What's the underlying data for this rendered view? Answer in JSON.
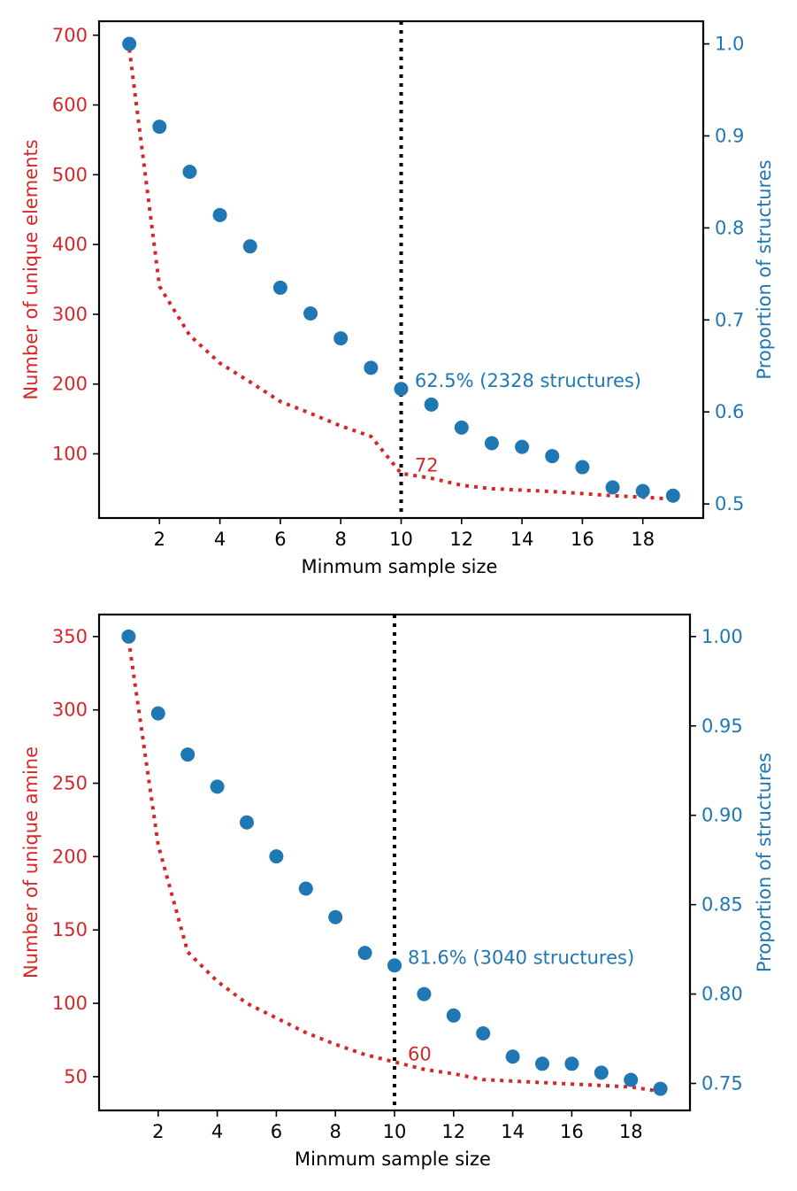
{
  "colors": {
    "left_axis": "#d62728",
    "right_axis": "#1f77b4",
    "line": "#d62728",
    "points": "#1f77b4",
    "vline": "#000000",
    "frame": "#000000"
  },
  "chart_data": [
    {
      "type": "line",
      "secondary_type": "scatter",
      "xlabel": "Minmum sample size",
      "ylabel_left": "Number of unique elements",
      "ylabel_right": "Proportion of structures",
      "xlim": [
        0.0,
        20.0
      ],
      "xticks": [
        2,
        4,
        6,
        8,
        10,
        12,
        14,
        16,
        18
      ],
      "ylim_left": [
        8,
        720
      ],
      "yticks_left": [
        100,
        200,
        300,
        400,
        500,
        600,
        700
      ],
      "ylim_right": [
        0.4847,
        1.0246
      ],
      "yticks_right": [
        0.5,
        0.6,
        0.7,
        0.8,
        0.9,
        1.0
      ],
      "yticks_right_labels": [
        "0.5",
        "0.6",
        "0.7",
        "0.8",
        "0.9",
        "1.0"
      ],
      "grid": false,
      "vline_x": 10,
      "series": [
        {
          "name": "",
          "axis": "left",
          "style": "dotted",
          "x": [
            1,
            2,
            3,
            4,
            5,
            6,
            7,
            8,
            9,
            10,
            11,
            12,
            13,
            14,
            15,
            16,
            17,
            18,
            19
          ],
          "values": [
            680,
            340,
            270,
            230,
            203,
            175,
            158,
            140,
            125,
            72,
            65,
            55,
            50,
            48,
            46,
            43,
            40,
            38,
            35
          ]
        },
        {
          "name": "",
          "axis": "right",
          "style": "markers",
          "x": [
            1,
            2,
            3,
            4,
            5,
            6,
            7,
            8,
            9,
            10,
            11,
            12,
            13,
            14,
            15,
            16,
            17,
            18,
            19
          ],
          "values": [
            1.0,
            0.91,
            0.861,
            0.814,
            0.78,
            0.735,
            0.707,
            0.68,
            0.648,
            0.625,
            0.608,
            0.583,
            0.566,
            0.562,
            0.552,
            0.54,
            0.518,
            0.514,
            0.509
          ]
        }
      ],
      "annotations": [
        {
          "text": "62.5% (2328 structures)",
          "color_key": "right_axis",
          "x": 10.45,
          "y": 0.625,
          "axis": "right"
        },
        {
          "text": "72",
          "color_key": "left_axis",
          "x": 10.45,
          "y": 72,
          "axis": "left"
        }
      ]
    },
    {
      "type": "line",
      "secondary_type": "scatter",
      "xlabel": "Minmum sample size",
      "ylabel_left": "Number of unique amine",
      "ylabel_right": "Proportion of structures",
      "xlim": [
        0.0,
        20.0
      ],
      "xticks": [
        2,
        4,
        6,
        8,
        10,
        12,
        14,
        16,
        18
      ],
      "ylim_left": [
        27,
        365
      ],
      "yticks_left": [
        50,
        100,
        150,
        200,
        250,
        300,
        350
      ],
      "ylim_right": [
        0.7349,
        1.0123
      ],
      "yticks_right": [
        0.75,
        0.8,
        0.85,
        0.9,
        0.95,
        1.0
      ],
      "yticks_right_labels": [
        "0.75",
        "0.80",
        "0.85",
        "0.90",
        "0.95",
        "1.00"
      ],
      "grid": false,
      "vline_x": 10,
      "series": [
        {
          "name": "",
          "axis": "left",
          "style": "dotted",
          "x": [
            1,
            2,
            3,
            4,
            5,
            6,
            7,
            8,
            9,
            10,
            11,
            12,
            13,
            14,
            15,
            16,
            17,
            18,
            19
          ],
          "values": [
            348,
            208,
            135,
            115,
            100,
            90,
            80,
            72,
            65,
            60,
            55,
            52,
            48,
            47,
            46,
            45,
            44,
            43,
            40
          ]
        },
        {
          "name": "",
          "axis": "right",
          "style": "markers",
          "x": [
            1,
            2,
            3,
            4,
            5,
            6,
            7,
            8,
            9,
            10,
            11,
            12,
            13,
            14,
            15,
            16,
            17,
            18,
            19
          ],
          "values": [
            1.0,
            0.957,
            0.934,
            0.916,
            0.896,
            0.877,
            0.859,
            0.843,
            0.823,
            0.816,
            0.8,
            0.788,
            0.778,
            0.765,
            0.761,
            0.761,
            0.756,
            0.752,
            0.747
          ]
        }
      ],
      "annotations": [
        {
          "text": "81.6% (3040 structures)",
          "color_key": "right_axis",
          "x": 10.45,
          "y": 0.816,
          "axis": "right"
        },
        {
          "text": "60",
          "color_key": "left_axis",
          "x": 10.45,
          "y": 60,
          "axis": "left"
        }
      ]
    }
  ]
}
